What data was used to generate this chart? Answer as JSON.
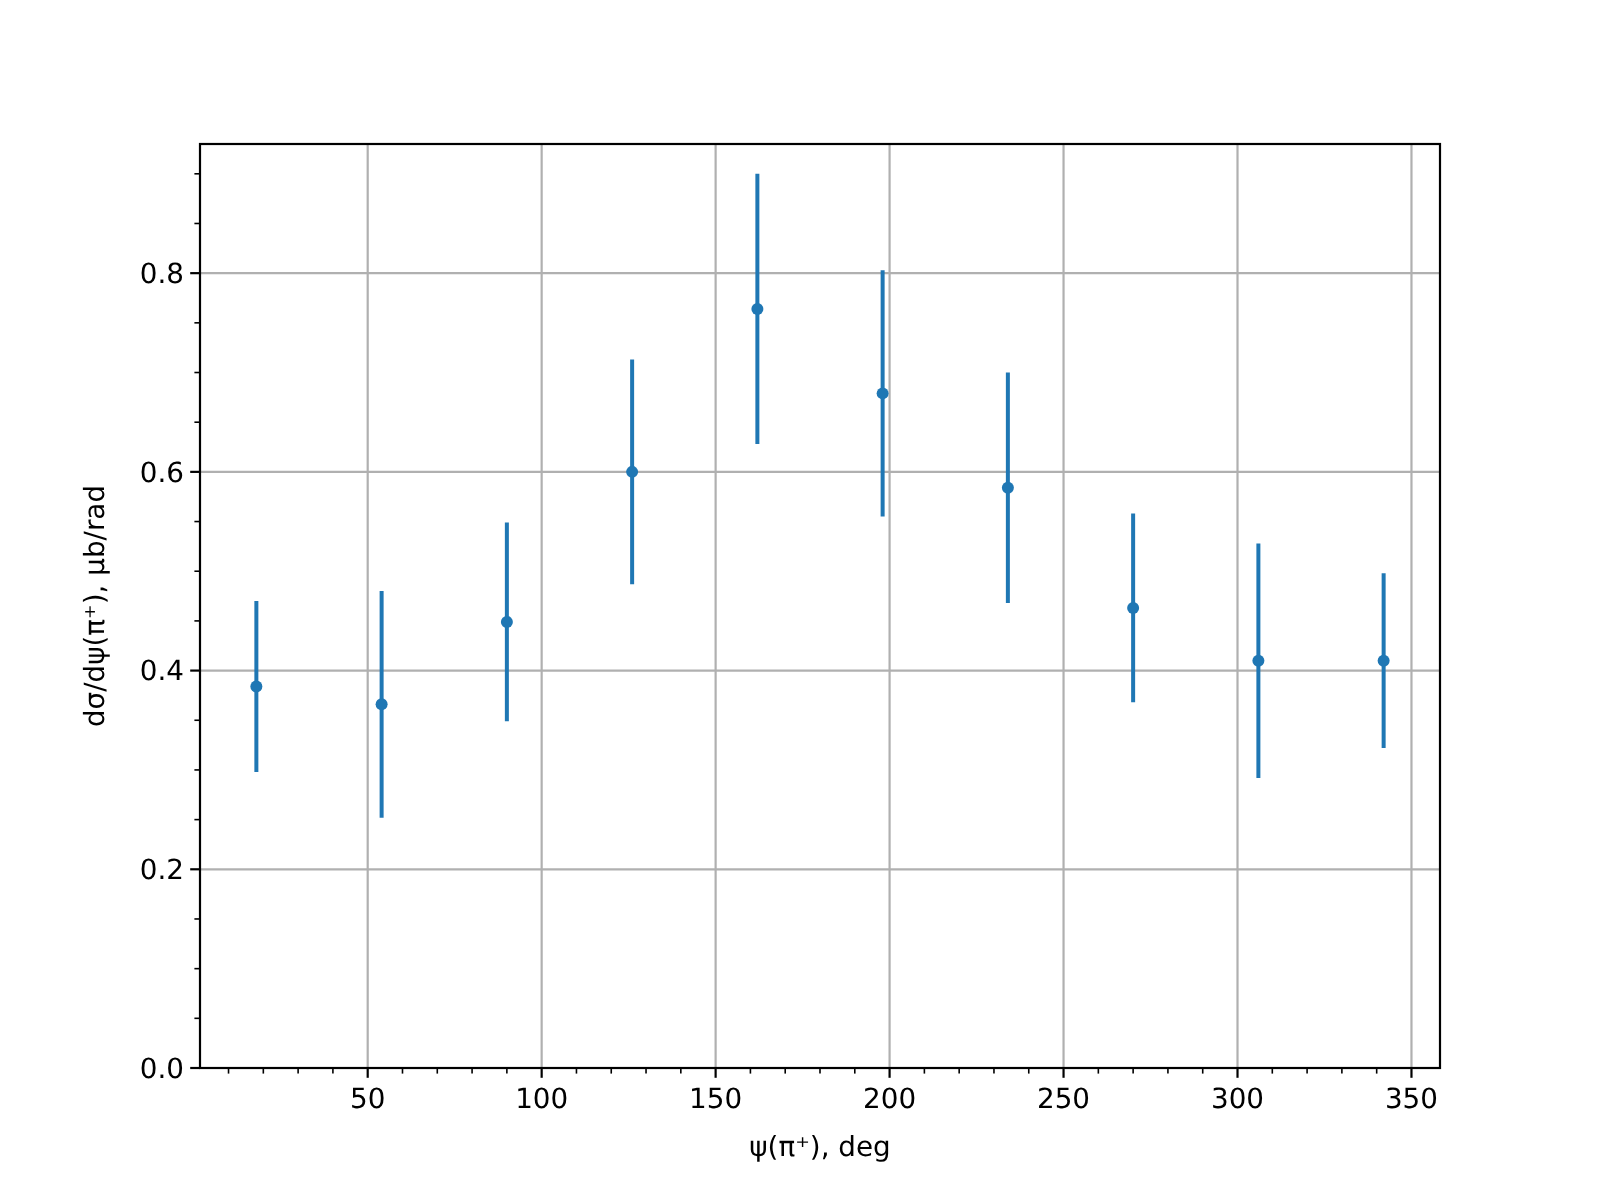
{
  "chart_data": {
    "type": "scatter",
    "xlabel": "ψ(π⁺), deg",
    "ylabel": "dσ/dψ(π⁺), μb/rad",
    "x": [
      18,
      54,
      90,
      126,
      162,
      198,
      234,
      270,
      306,
      342
    ],
    "series": [
      {
        "color": "#1f77b4",
        "values": [
          0.384,
          0.366,
          0.449,
          0.6,
          0.764,
          0.679,
          0.584,
          0.463,
          0.41,
          0.41
        ],
        "errors": [
          0.086,
          0.114,
          0.1,
          0.113,
          0.136,
          0.124,
          0.116,
          0.095,
          0.118,
          0.088
        ]
      }
    ],
    "xlim": [
      1.8,
      358.2
    ],
    "ylim": [
      0,
      0.93
    ],
    "xticks": [
      {
        "value": 10,
        "label": null
      },
      {
        "value": 20,
        "label": null
      },
      {
        "value": 30,
        "label": null
      },
      {
        "value": 40,
        "label": null
      },
      50,
      {
        "value": 60,
        "label": null
      },
      {
        "value": 70,
        "label": null
      },
      {
        "value": 80,
        "label": null
      },
      {
        "value": 90,
        "label": null
      },
      100,
      {
        "value": 110,
        "label": null
      },
      {
        "value": 120,
        "label": null
      },
      {
        "value": 130,
        "label": null
      },
      {
        "value": 140,
        "label": null
      },
      150,
      {
        "value": 160,
        "label": null
      },
      {
        "value": 170,
        "label": null
      },
      {
        "value": 180,
        "label": null
      },
      {
        "value": 190,
        "label": null
      },
      200,
      {
        "value": 210,
        "label": null
      },
      {
        "value": 220,
        "label": null
      },
      {
        "value": 230,
        "label": null
      },
      {
        "value": 240,
        "label": null
      },
      250,
      {
        "value": 260,
        "label": null
      },
      {
        "value": 270,
        "label": null
      },
      {
        "value": 280,
        "label": null
      },
      {
        "value": 290,
        "label": null
      },
      300,
      {
        "value": 310,
        "label": null
      },
      {
        "value": 320,
        "label": null
      },
      {
        "value": 330,
        "label": null
      },
      {
        "value": 340,
        "label": null
      },
      350
    ],
    "yticks": [
      {
        "value": 0,
        "label": "0.0"
      },
      {
        "value": 0.05,
        "label": null
      },
      {
        "value": 0.1,
        "label": null
      },
      {
        "value": 0.15,
        "label": null
      },
      {
        "value": 0.2,
        "label": "0.2"
      },
      {
        "value": 0.25,
        "label": null
      },
      {
        "value": 0.3,
        "label": null
      },
      {
        "value": 0.35,
        "label": null
      },
      {
        "value": 0.4,
        "label": "0.4"
      },
      {
        "value": 0.45,
        "label": null
      },
      {
        "value": 0.5,
        "label": null
      },
      {
        "value": 0.55,
        "label": null
      },
      {
        "value": 0.6,
        "label": "0.6"
      },
      {
        "value": 0.65,
        "label": null
      },
      {
        "value": 0.7,
        "label": null
      },
      {
        "value": 0.75,
        "label": null
      },
      {
        "value": 0.8,
        "label": "0.8"
      },
      {
        "value": 0.85,
        "label": null
      },
      {
        "value": 0.9,
        "label": null
      }
    ],
    "grid": true,
    "marker": "circle"
  }
}
